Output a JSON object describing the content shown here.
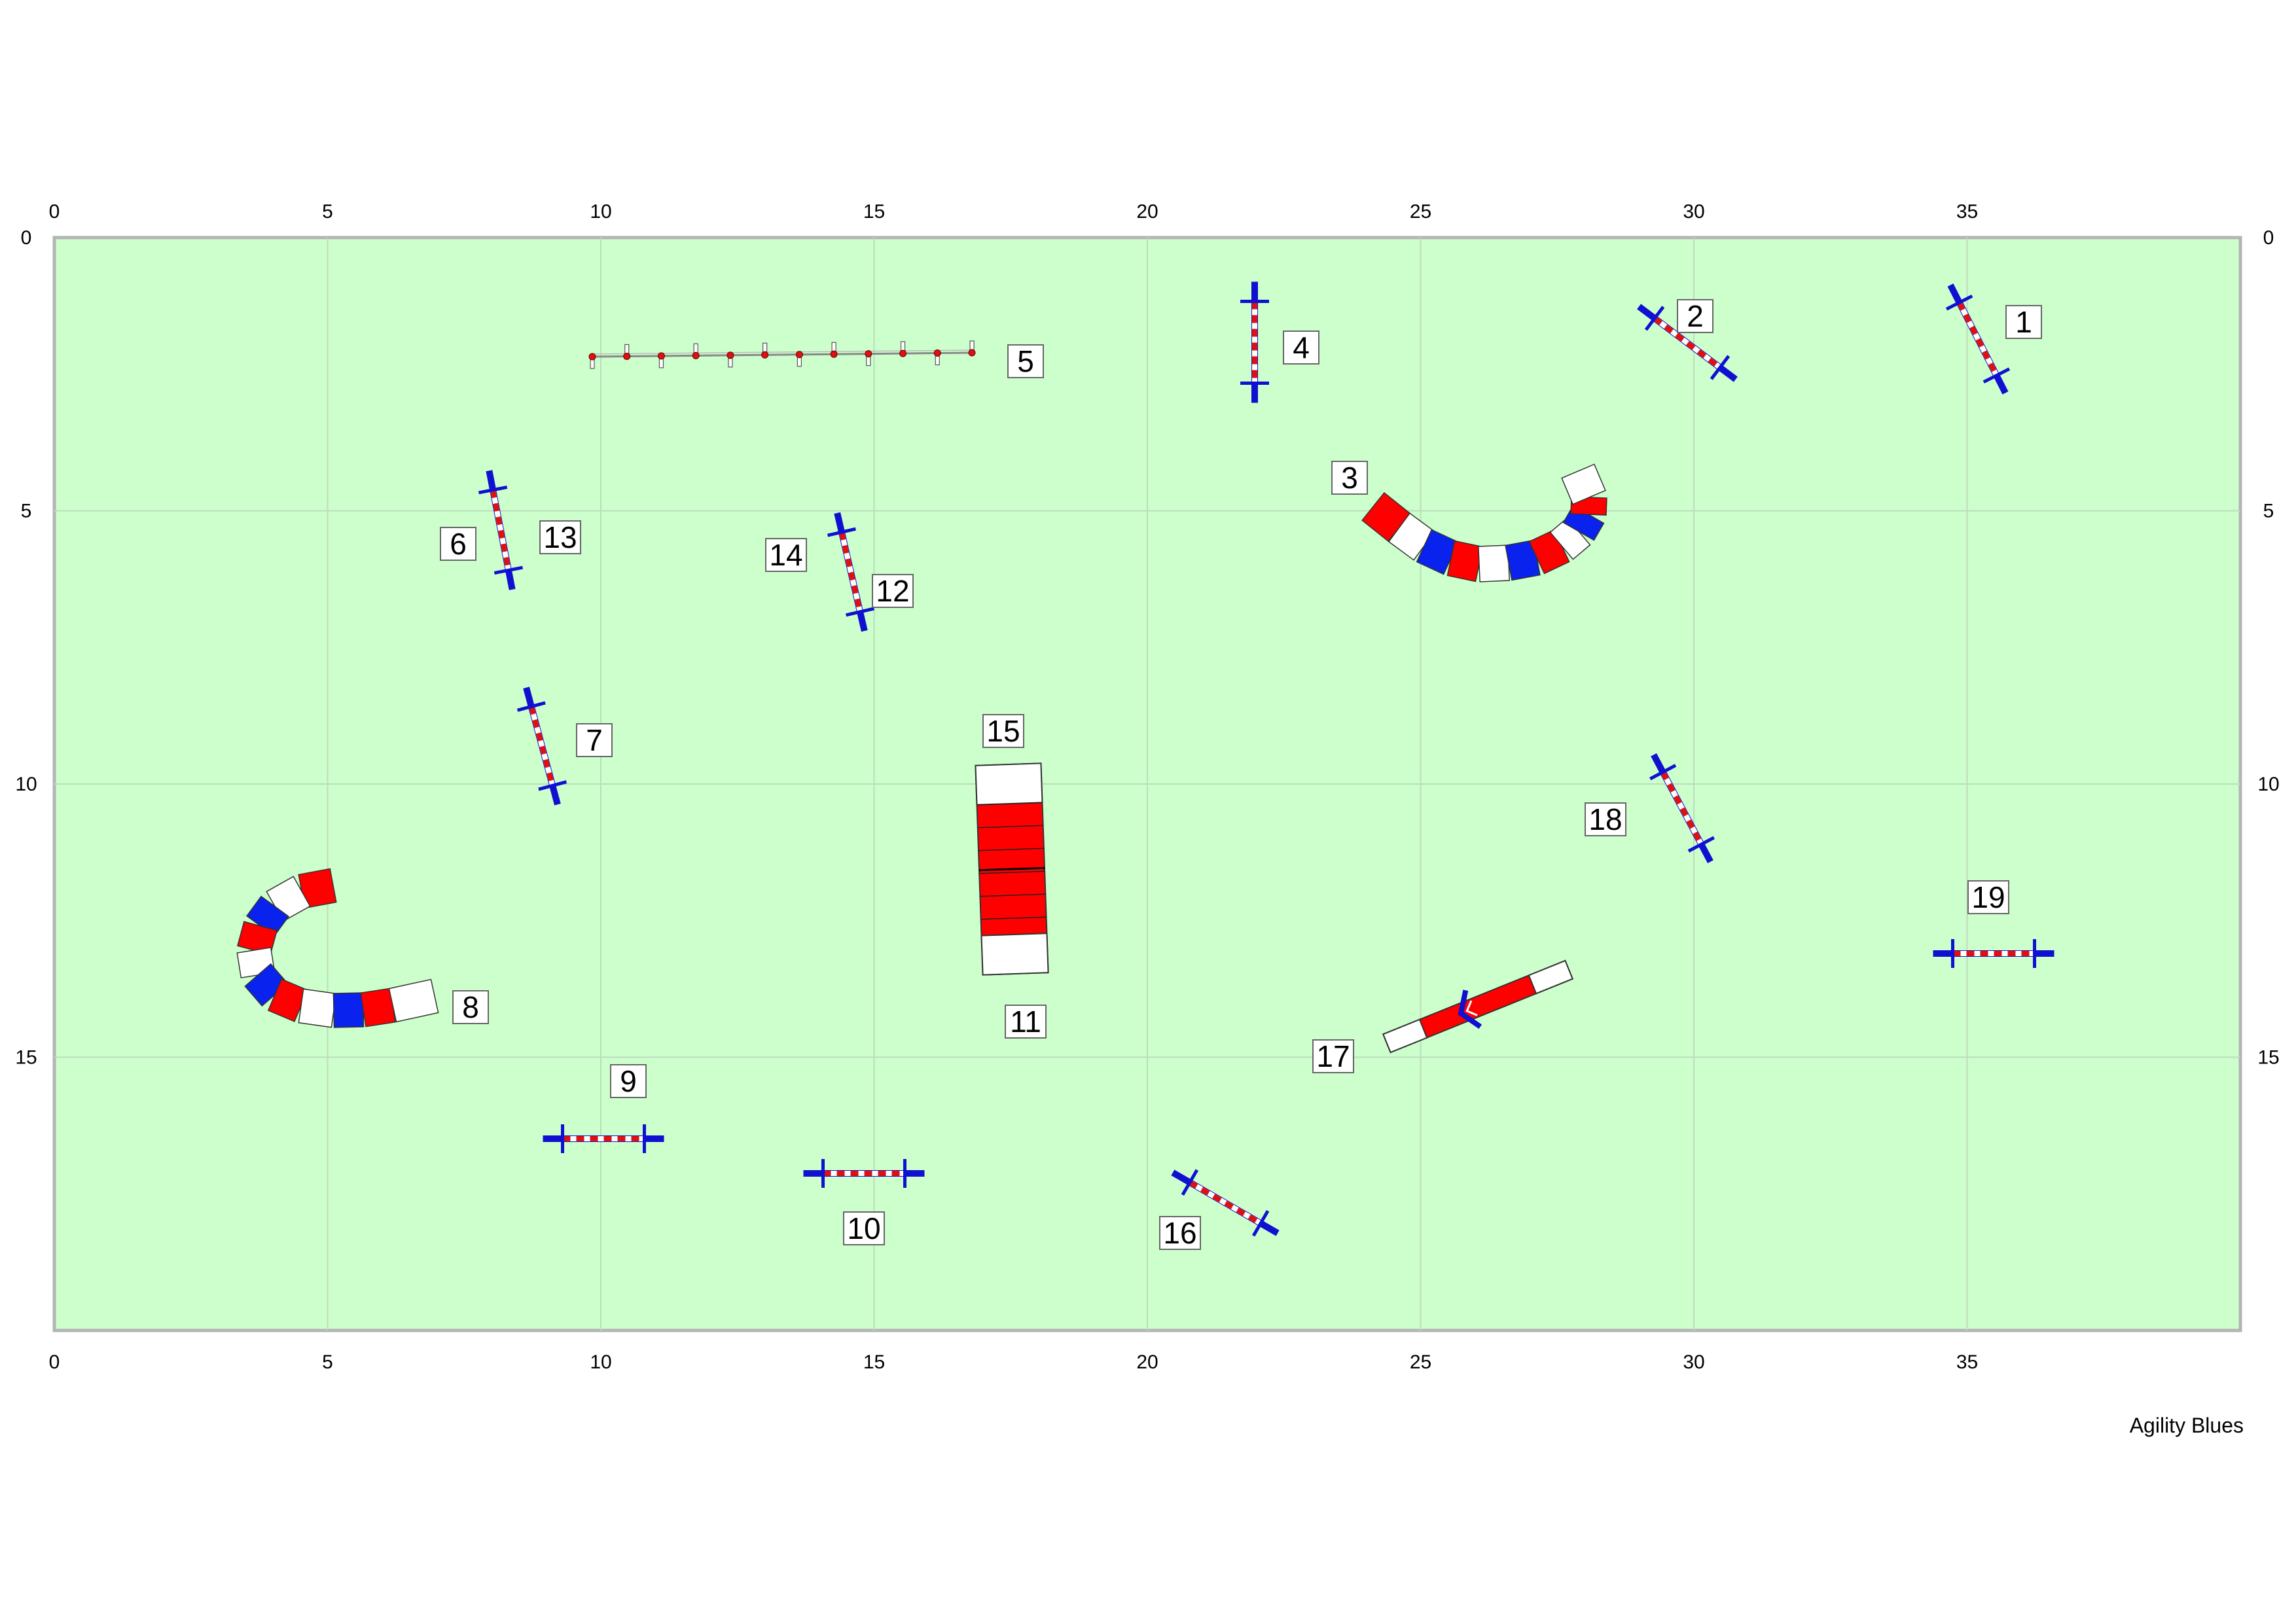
{
  "footer": {
    "credit": "Agility Blues"
  },
  "colors": {
    "field": "#ccffcc",
    "field_border": "#b4b4b4",
    "grid": "#bcdcbc",
    "bar_red": "#e01010",
    "post_blue": "#1010d0",
    "tunnel_red": "#ff0000",
    "tunnel_blue": "#0a22ee",
    "tunnel_white": "#ffffff"
  },
  "axes": {
    "x_ticks": [
      "0",
      "5",
      "10",
      "15",
      "20",
      "25",
      "30",
      "35"
    ],
    "y_ticks": [
      "0",
      "5",
      "10",
      "15"
    ]
  },
  "obstacles": [
    {
      "type": "jump",
      "number": "1"
    },
    {
      "type": "jump",
      "number": "2"
    },
    {
      "type": "tunnel",
      "number": "3"
    },
    {
      "type": "jump",
      "number": "4"
    },
    {
      "type": "weave-poles",
      "number": "5"
    },
    {
      "type": "jump",
      "number": "6"
    },
    {
      "type": "jump",
      "number": "7"
    },
    {
      "type": "tunnel",
      "number": "8"
    },
    {
      "type": "jump",
      "number": "9"
    },
    {
      "type": "jump",
      "number": "10"
    },
    {
      "type": "a-frame",
      "number": "11"
    },
    {
      "type": "jump",
      "number": "12"
    },
    {
      "type": "jump",
      "number": "13"
    },
    {
      "type": "jump",
      "number": "14"
    },
    {
      "type": "a-frame",
      "number": "15"
    },
    {
      "type": "jump",
      "number": "16"
    },
    {
      "type": "seesaw",
      "number": "17"
    },
    {
      "type": "jump",
      "number": "18"
    },
    {
      "type": "jump",
      "number": "19"
    }
  ]
}
